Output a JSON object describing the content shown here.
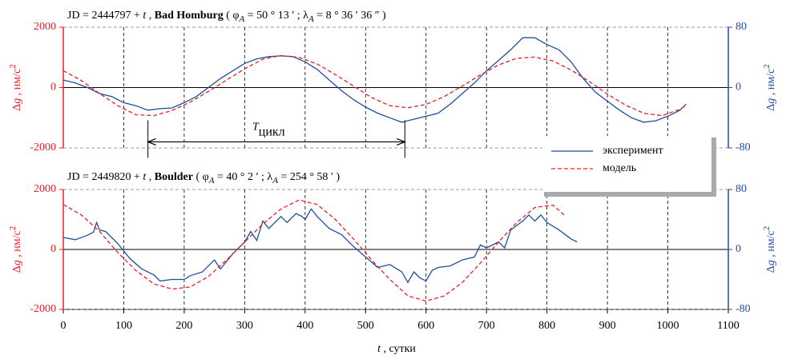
{
  "chart_data": [
    {
      "type": "line",
      "title_parts": [
        "JD = 2444797 + ",
        "t",
        " , ",
        "Bad Homburg",
        " ( φ",
        "A",
        " =  50 ° 13 ′ ;  λ",
        "A",
        " =  8 ° 36 ′ 36 ″ )"
      ],
      "ylabel_parts": [
        "Δ",
        "g",
        " ,  нм/с",
        "2"
      ],
      "y2label_parts": [
        "Δ",
        "g",
        " ,  нм/с",
        "2"
      ],
      "xlim": [
        0,
        1100
      ],
      "xticks": [
        0,
        100,
        200,
        300,
        400,
        500,
        600,
        700,
        800,
        900,
        1000,
        1100
      ],
      "ylim": [
        -2000,
        2000
      ],
      "yticks": [
        -2000,
        0,
        2000
      ],
      "y2lim": [
        -80,
        80
      ],
      "y2ticks": [
        -80,
        0,
        80
      ],
      "annotation": {
        "main": "T",
        "sub": "цикл",
        "x": [
          140,
          565
        ],
        "y": -1800
      },
      "series": [
        {
          "name": "эксперимент",
          "color": "#1f4e9c",
          "linestyle": "solid",
          "axis": "y2",
          "x": [
            0,
            20,
            40,
            60,
            80,
            100,
            120,
            140,
            160,
            180,
            200,
            220,
            240,
            260,
            280,
            300,
            320,
            340,
            360,
            380,
            400,
            420,
            440,
            460,
            480,
            500,
            520,
            540,
            560,
            580,
            600,
            620,
            640,
            660,
            680,
            700,
            720,
            740,
            760,
            780,
            800,
            820,
            840,
            860,
            880,
            900,
            920,
            940,
            960,
            980,
            1000,
            1020,
            1030
          ],
          "values": [
            10,
            6,
            0,
            -8,
            -12,
            -20,
            -24,
            -30,
            -28,
            -27,
            -20,
            -12,
            0,
            12,
            22,
            32,
            38,
            41,
            42,
            41,
            34,
            24,
            10,
            -4,
            -16,
            -26,
            -34,
            -40,
            -46,
            -42,
            -38,
            -34,
            -22,
            -8,
            6,
            22,
            36,
            50,
            66,
            66,
            57,
            50,
            34,
            12,
            -6,
            -18,
            -30,
            -40,
            -46,
            -44,
            -38,
            -30,
            -22
          ]
        },
        {
          "name": "модель",
          "color": "#e8202a",
          "linestyle": "dashed",
          "x": [
            0,
            30,
            60,
            90,
            120,
            150,
            180,
            210,
            240,
            270,
            300,
            330,
            360,
            390,
            420,
            450,
            480,
            510,
            540,
            570,
            600,
            630,
            660,
            690,
            720,
            750,
            780,
            810,
            840,
            870,
            900,
            930,
            960,
            990,
            1020,
            1030
          ],
          "values": [
            560,
            230,
            -200,
            -600,
            -900,
            -930,
            -760,
            -480,
            -130,
            250,
            620,
            940,
            1060,
            1000,
            780,
            430,
            50,
            -330,
            -600,
            -670,
            -560,
            -300,
            50,
            420,
            750,
            970,
            1010,
            880,
            580,
            200,
            -220,
            -580,
            -850,
            -930,
            -720,
            -590
          ]
        }
      ]
    },
    {
      "type": "line",
      "title_parts": [
        "JD = 2449820 + ",
        "t",
        " , ",
        "Boulder",
        " ( φ",
        "A",
        " =  40 ° 2 ′ ;  λ",
        "A",
        " =  254 ° 58 ′ )"
      ],
      "ylabel_parts": [
        "Δ",
        "g",
        " ,  нм/с",
        "2"
      ],
      "y2label_parts": [
        "Δ",
        "g",
        " ,  нм/с",
        "2"
      ],
      "xlabel_parts": [
        "t",
        " ,  сутки"
      ],
      "xlim": [
        0,
        1100
      ],
      "xticks": [
        0,
        100,
        200,
        300,
        400,
        500,
        600,
        700,
        800,
        900,
        1000,
        1100
      ],
      "ylim": [
        -2000,
        2000
      ],
      "yticks": [
        -2000,
        0,
        2000
      ],
      "y2lim": [
        -80,
        80
      ],
      "y2ticks": [
        -80,
        0,
        80
      ],
      "series": [
        {
          "name": "эксперимент",
          "color": "#1f4e9c",
          "linestyle": "solid",
          "axis": "y2",
          "x": [
            0,
            20,
            40,
            50,
            55,
            60,
            70,
            90,
            110,
            130,
            150,
            160,
            180,
            200,
            210,
            230,
            250,
            260,
            280,
            300,
            310,
            320,
            330,
            340,
            360,
            370,
            385,
            395,
            400,
            410,
            420,
            440,
            460,
            480,
            500,
            520,
            540,
            560,
            570,
            580,
            590,
            600,
            610,
            620,
            640,
            660,
            680,
            690,
            700,
            720,
            730,
            740,
            760,
            770,
            780,
            790,
            800,
            820,
            840,
            850
          ],
          "values": [
            16,
            13,
            19,
            23,
            36,
            26,
            24,
            8,
            -12,
            -26,
            -34,
            -42,
            -40,
            -40,
            -35,
            -30,
            -14,
            -26,
            -6,
            10,
            24,
            12,
            38,
            28,
            44,
            36,
            48,
            44,
            40,
            54,
            44,
            28,
            20,
            4,
            -10,
            -24,
            -20,
            -30,
            -44,
            -30,
            -38,
            -42,
            -28,
            -24,
            -22,
            -14,
            -10,
            6,
            2,
            10,
            2,
            26,
            38,
            46,
            38,
            46,
            36,
            26,
            14,
            10
          ]
        },
        {
          "name": "модель",
          "color": "#e8202a",
          "linestyle": "dashed",
          "x": [
            0,
            30,
            60,
            90,
            120,
            150,
            180,
            210,
            240,
            270,
            300,
            330,
            360,
            390,
            420,
            450,
            480,
            510,
            540,
            570,
            600,
            630,
            660,
            690,
            720,
            750,
            780,
            810,
            830
          ],
          "values": [
            1500,
            1150,
            600,
            -100,
            -700,
            -1150,
            -1320,
            -1250,
            -900,
            -350,
            250,
            850,
            1350,
            1650,
            1500,
            1000,
            350,
            -350,
            -1000,
            -1550,
            -1720,
            -1550,
            -1100,
            -450,
            250,
            900,
            1400,
            1480,
            1120
          ]
        }
      ]
    }
  ]
}
